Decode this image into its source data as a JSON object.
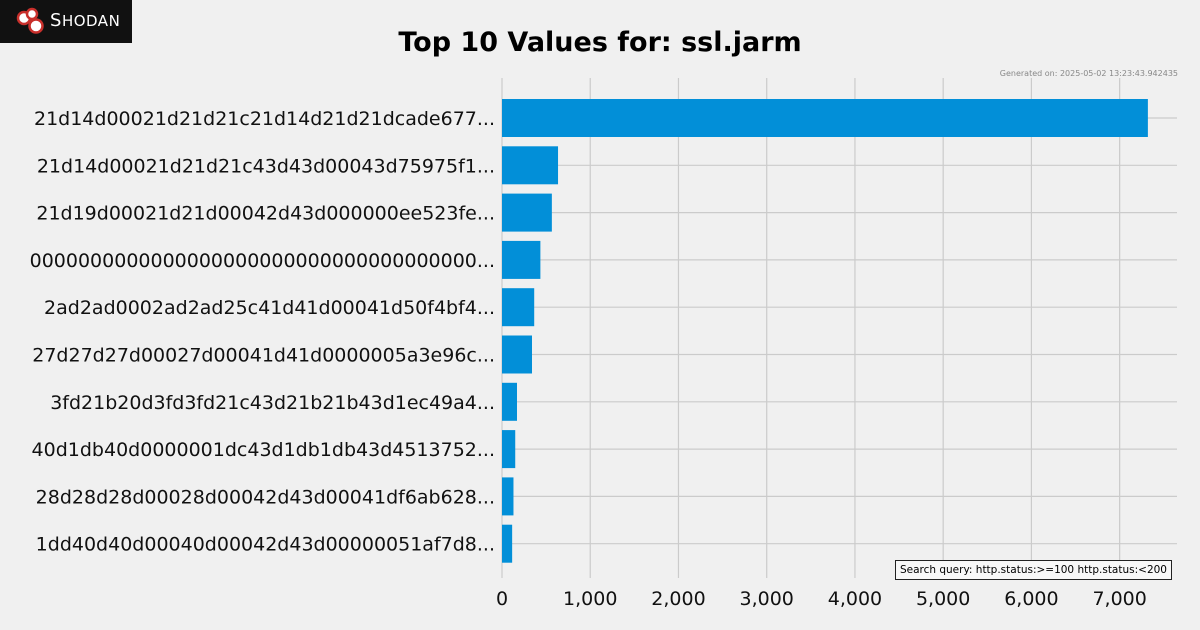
{
  "logo": {
    "text_first": "S",
    "text_rest": "HODAN",
    "icon": "shodan-logo-icon"
  },
  "generated": "Generated on: 2025-05-02 13:23:43.942435",
  "search_query": "Search query: http.status:>=100 http.status:<200",
  "colors": {
    "bar": "#028fd8",
    "grid": "#cbcbcb",
    "background": "#f0f0f0"
  },
  "chart_data": {
    "type": "bar",
    "orientation": "horizontal",
    "title": "Top 10 Values for: ssl.jarm",
    "xlabel": "",
    "ylabel": "",
    "xlim": [
      0,
      7650
    ],
    "xticks": [
      0,
      1000,
      2000,
      3000,
      4000,
      5000,
      6000,
      7000
    ],
    "xtick_labels": [
      "0",
      "1,000",
      "2,000",
      "3,000",
      "4,000",
      "5,000",
      "6,000",
      "7,000"
    ],
    "grid": true,
    "categories": [
      "21d14d00021d21d21c21d14d21d21dcade677...",
      "21d14d00021d21d21c43d43d00043d75975f1...",
      "21d19d00021d21d00042d43d000000ee523fe...",
      "0000000000000000000000000000000000000...",
      "2ad2ad0002ad2ad25c41d41d00041d50f4bf4...",
      "27d27d27d00027d00041d41d0000005a3e96c...",
      "3fd21b20d3fd3fd21c43d21b21b43d1ec49a4...",
      "40d1db40d0000001dc43d1db1db43d4513752...",
      "28d28d28d00028d00042d43d00041df6ab628...",
      "1dd40d40d00040d00042d43d00000051af7d8..."
    ],
    "values": [
      7320,
      635,
      565,
      435,
      365,
      340,
      170,
      150,
      130,
      115
    ]
  }
}
